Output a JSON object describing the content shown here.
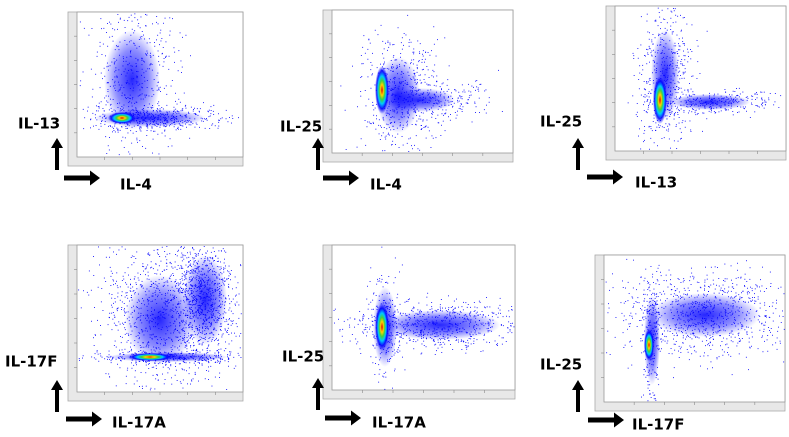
{
  "panels": [
    {
      "x_label": "IL-4",
      "y_label": "IL-13"
    },
    {
      "x_label": "IL-4",
      "y_label": "IL-25"
    },
    {
      "x_label": "IL-13",
      "y_label": "IL-25"
    },
    {
      "x_label": "IL-17A",
      "y_label": "IL-17F"
    },
    {
      "x_label": "IL-17A",
      "y_label": "IL-25"
    },
    {
      "x_label": "IL-17F",
      "y_label": "IL-25"
    }
  ]
}
